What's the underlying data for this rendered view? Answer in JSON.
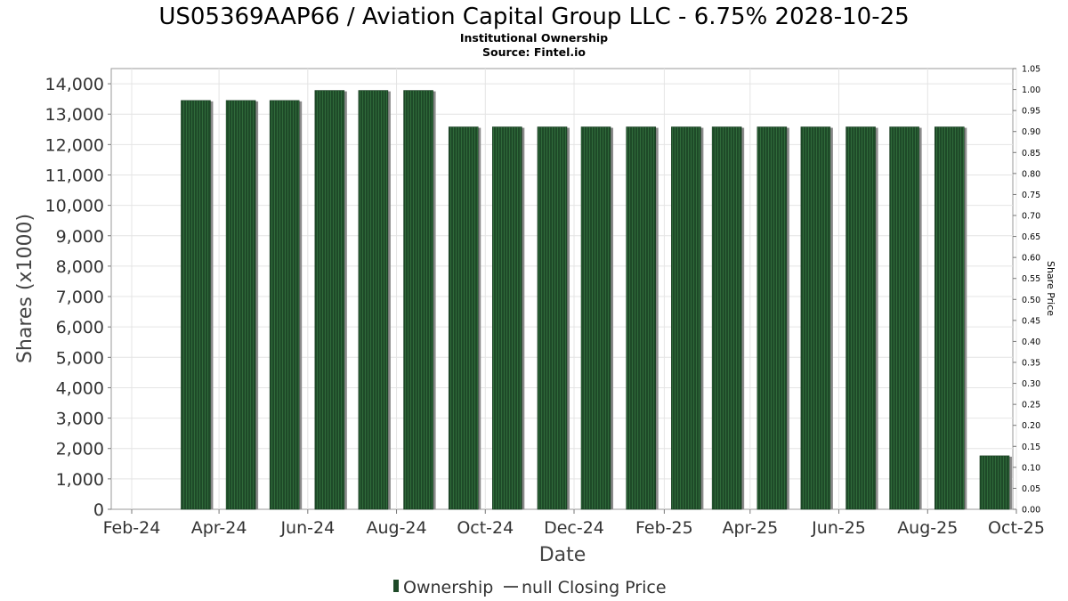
{
  "chart_data": {
    "type": "bar",
    "title": "US05369AAP66 / Aviation Capital Group LLC - 6.75% 2028-10-25",
    "subtitle_line1": "Institutional Ownership",
    "subtitle_line2": "Source: Fintel.io",
    "xlabel": "Date",
    "ylabel": "Shares (x1000)",
    "y2label": "Share Price",
    "ylim": [
      0,
      14500
    ],
    "y2lim": [
      0,
      1.05
    ],
    "yticks": [
      "0",
      "1,000",
      "2,000",
      "3,000",
      "4,000",
      "5,000",
      "6,000",
      "7,000",
      "8,000",
      "9,000",
      "10,000",
      "11,000",
      "12,000",
      "13,000",
      "14,000"
    ],
    "y2ticks": [
      "0.00",
      "0.05",
      "0.10",
      "0.15",
      "0.20",
      "0.25",
      "0.30",
      "0.35",
      "0.40",
      "0.45",
      "0.50",
      "0.55",
      "0.60",
      "0.65",
      "0.70",
      "0.75",
      "0.80",
      "0.85",
      "0.90",
      "0.95",
      "1.00",
      "1.05"
    ],
    "xticks": [
      "Feb-24",
      "Apr-24",
      "Jun-24",
      "Aug-24",
      "Oct-24",
      "Dec-24",
      "Feb-25",
      "Apr-25",
      "Jun-25",
      "Aug-25",
      "Oct-25"
    ],
    "xlim": [
      "2024-02-01",
      "2025-10-01"
    ],
    "grid": true,
    "legend_position": "bottom-center",
    "legend": [
      {
        "name": "Ownership",
        "kind": "bar",
        "color": "#1e4a28"
      },
      {
        "name": "null Closing Price",
        "kind": "line",
        "color": "#555555"
      }
    ],
    "series": [
      {
        "name": "Ownership",
        "color": "#1e4a28",
        "x": [
          "2024-03-16",
          "2024-04-16",
          "2024-05-16",
          "2024-06-16",
          "2024-07-16",
          "2024-08-16",
          "2024-09-16",
          "2024-10-16",
          "2024-11-16",
          "2024-12-16",
          "2025-01-16",
          "2025-02-16",
          "2025-03-16",
          "2025-04-16",
          "2025-05-16",
          "2025-06-16",
          "2025-07-16",
          "2025-08-16",
          "2025-09-16"
        ],
        "values": [
          13450,
          13450,
          13450,
          13780,
          13780,
          13780,
          12580,
          12580,
          12580,
          12580,
          12580,
          12580,
          12580,
          12580,
          12580,
          12580,
          12580,
          12580,
          1760
        ]
      }
    ]
  }
}
